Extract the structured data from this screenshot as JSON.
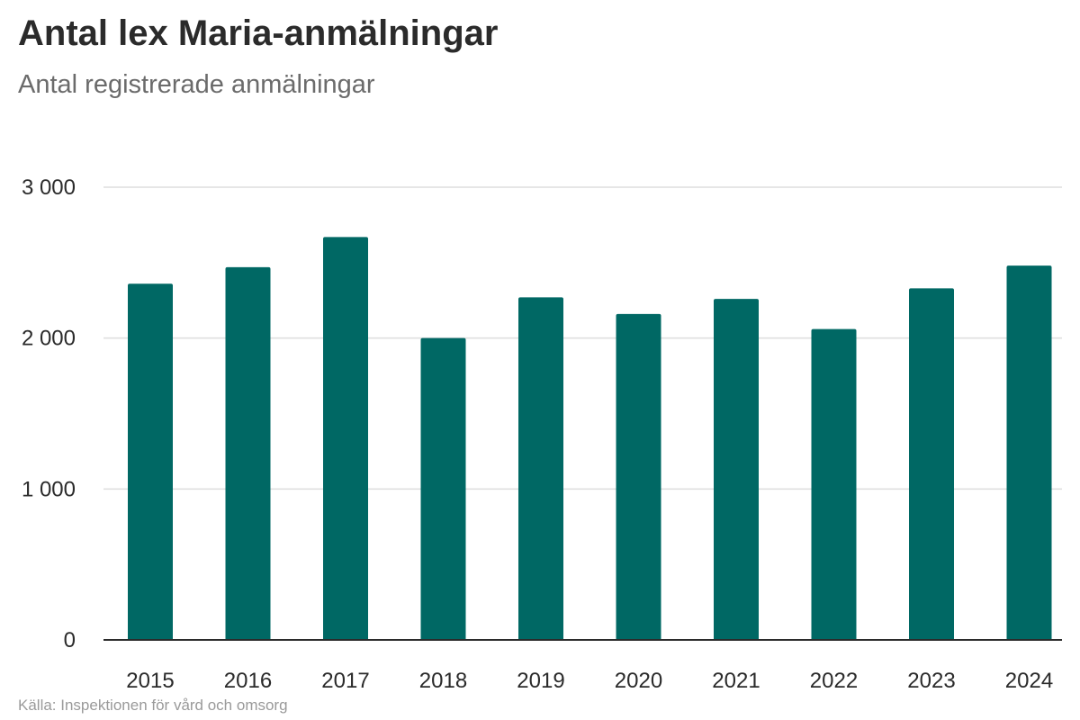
{
  "header": {
    "title": "Antal lex Maria-anmälningar",
    "subtitle": "Antal registrerade anmälningar"
  },
  "footer": {
    "source": "Källa: Inspektionen för vård och omsorg"
  },
  "colors": {
    "bar": "#006864",
    "grid": "#dddddd",
    "axis": "#2b2b2b"
  },
  "chart_data": {
    "type": "bar",
    "title": "Antal lex Maria-anmälningar",
    "subtitle": "Antal registrerade anmälningar",
    "categories": [
      "2015",
      "2016",
      "2017",
      "2018",
      "2019",
      "2020",
      "2021",
      "2022",
      "2023",
      "2024"
    ],
    "values": [
      2360,
      2470,
      2670,
      2000,
      2270,
      2160,
      2260,
      2060,
      2330,
      2480
    ],
    "xlabel": "",
    "ylabel": "",
    "ylim": [
      0,
      3000
    ],
    "yticks": [
      0,
      1000,
      2000,
      3000
    ],
    "ytick_labels": [
      "0",
      "1 000",
      "2 000",
      "3 000"
    ],
    "grid": true,
    "legend": "none"
  }
}
